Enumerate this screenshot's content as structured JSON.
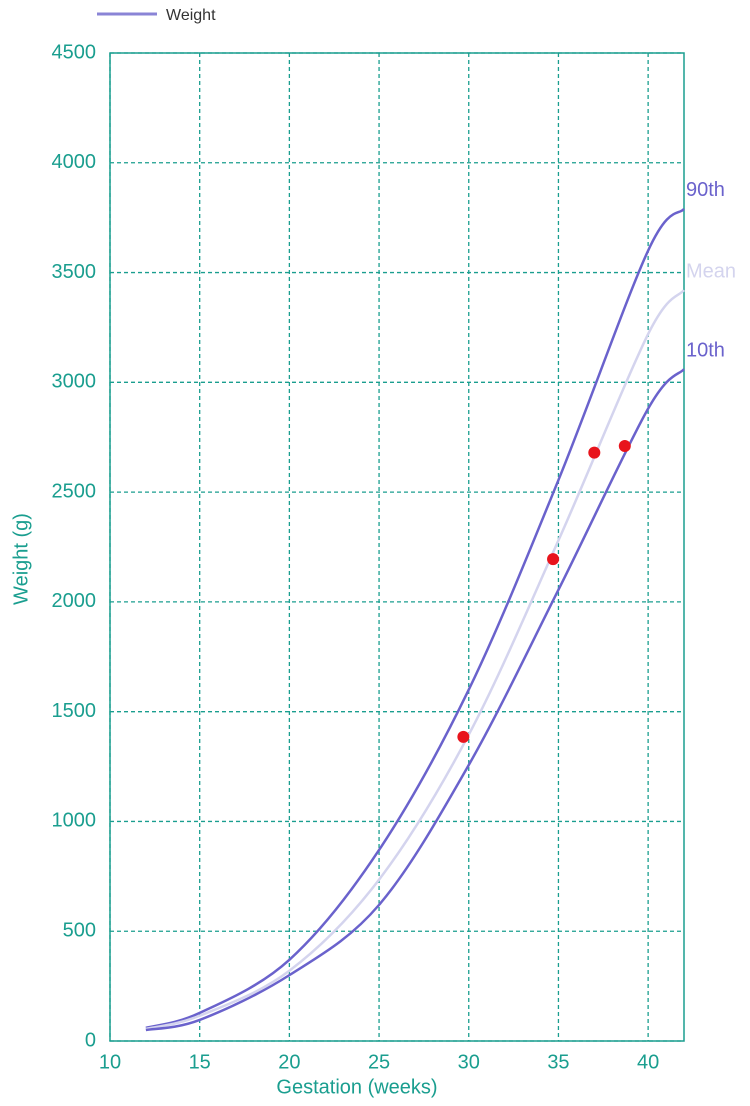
{
  "chart_data": {
    "type": "line",
    "legend": {
      "label": "Weight",
      "color": "#8a84d6"
    },
    "x_label": "Gestation (weeks)",
    "y_label": "Weight (g)",
    "x": [
      12,
      15,
      20,
      25,
      30,
      35,
      40,
      42
    ],
    "series": [
      {
        "name": "90th",
        "color": "#6a62cc",
        "values": [
          60,
          128,
          370,
          870,
          1600,
          2555,
          3600,
          3790
        ]
      },
      {
        "name": "Mean",
        "color": "#d4d4ee",
        "values": [
          55,
          115,
          320,
          735,
          1395,
          2280,
          3220,
          3420
        ]
      },
      {
        "name": "10th",
        "color": "#6a62cc",
        "values": [
          50,
          96,
          300,
          620,
          1257,
          2055,
          2880,
          3060
        ]
      }
    ],
    "points": {
      "x": [
        29.7,
        34.7,
        37,
        38.7
      ],
      "y": [
        1385,
        2195,
        2680,
        2710
      ],
      "color": "#e8141c"
    },
    "xlim": [
      10,
      42
    ],
    "ylim": [
      0,
      4500
    ],
    "xticks": [
      10,
      15,
      20,
      25,
      30,
      35,
      40
    ],
    "yticks": [
      0,
      500,
      1000,
      1500,
      2000,
      2500,
      3000,
      3500,
      4000,
      4500
    ],
    "grid": true,
    "axis_color": "#1a9e8f"
  }
}
